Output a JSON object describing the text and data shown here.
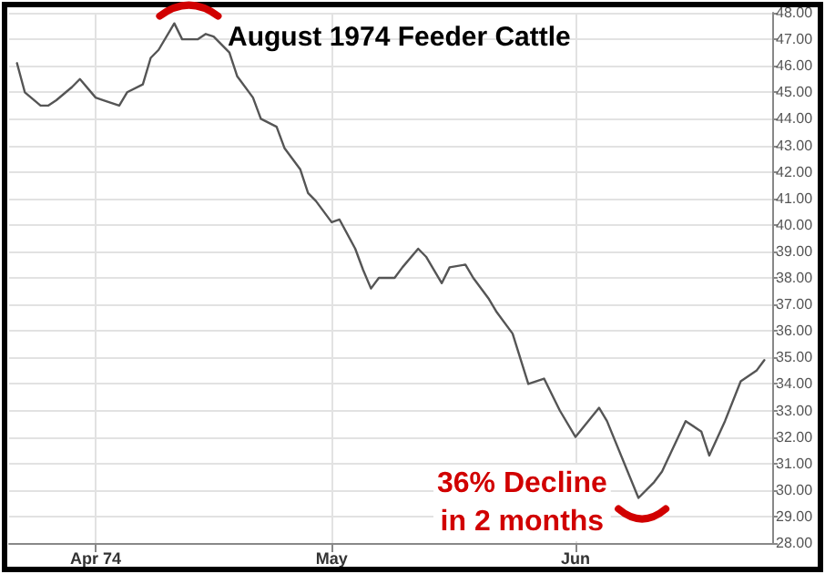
{
  "chart_data": {
    "type": "line",
    "title": "August 1974 Feeder Cattle",
    "annotations": [
      "36% Decline\nin 2 months"
    ],
    "x": [
      "1974-03-22",
      "1974-03-23",
      "1974-03-25",
      "1974-03-26",
      "1974-03-27",
      "1974-03-29",
      "1974-03-30",
      "1974-04-01",
      "1974-04-02",
      "1974-04-04",
      "1974-04-05",
      "1974-04-07",
      "1974-04-08",
      "1974-04-09",
      "1974-04-11",
      "1974-04-12",
      "1974-04-14",
      "1974-04-15",
      "1974-04-16",
      "1974-04-18",
      "1974-04-19",
      "1974-04-21",
      "1974-04-22",
      "1974-04-24",
      "1974-04-25",
      "1974-04-27",
      "1974-04-28",
      "1974-04-29",
      "1974-05-01",
      "1974-05-02",
      "1974-05-04",
      "1974-05-05",
      "1974-05-06",
      "1974-05-07",
      "1974-05-09",
      "1974-05-10",
      "1974-05-12",
      "1974-05-13",
      "1974-05-15",
      "1974-05-16",
      "1974-05-18",
      "1974-05-19",
      "1974-05-21",
      "1974-05-22",
      "1974-05-24",
      "1974-05-26",
      "1974-05-28",
      "1974-05-30",
      "1974-06-01",
      "1974-06-04",
      "1974-06-05",
      "1974-06-09",
      "1974-06-11",
      "1974-06-12",
      "1974-06-15",
      "1974-06-17",
      "1974-06-18",
      "1974-06-20",
      "1974-06-22",
      "1974-06-24",
      "1974-06-25"
    ],
    "series": [
      {
        "color": "#555555",
        "values": [
          46.1,
          45.0,
          44.5,
          44.5,
          44.7,
          45.2,
          45.5,
          44.8,
          44.7,
          44.5,
          45.0,
          45.3,
          46.3,
          46.6,
          47.6,
          47.0,
          47.0,
          47.2,
          47.1,
          46.5,
          45.6,
          44.8,
          44.0,
          43.7,
          42.9,
          42.1,
          41.2,
          40.9,
          40.1,
          40.2,
          39.1,
          38.3,
          37.6,
          38.0,
          38.0,
          38.4,
          39.1,
          38.8,
          37.8,
          38.4,
          38.5,
          38.0,
          37.2,
          36.7,
          35.9,
          34.0,
          34.2,
          33.0,
          32.0,
          33.1,
          32.6,
          29.7,
          30.3,
          30.7,
          32.6,
          32.2,
          31.3,
          32.6,
          34.1,
          34.5,
          34.9
        ]
      }
    ],
    "xlim": [
      "1974-03-21",
      "1974-06-26"
    ],
    "xticks": [
      {
        "value": "1974-04-01",
        "label": "Apr 74"
      },
      {
        "value": "1974-05-01",
        "label": "May"
      },
      {
        "value": "1974-06-01",
        "label": "Jun"
      }
    ],
    "ylim": [
      28,
      48
    ],
    "yticks": [
      {
        "value": 28,
        "label": "28.00"
      },
      {
        "value": 29,
        "label": "29.00"
      },
      {
        "value": 30,
        "label": "30.00"
      },
      {
        "value": 31,
        "label": "31.00"
      },
      {
        "value": 32,
        "label": "32.00"
      },
      {
        "value": 33,
        "label": "33.00"
      },
      {
        "value": 34,
        "label": "34.00"
      },
      {
        "value": 35,
        "label": "35.00"
      },
      {
        "value": 36,
        "label": "36.00"
      },
      {
        "value": 37,
        "label": "37.00"
      },
      {
        "value": 38,
        "label": "38.00"
      },
      {
        "value": 39,
        "label": "39.00"
      },
      {
        "value": 40,
        "label": "40.00"
      },
      {
        "value": 41,
        "label": "41.00"
      },
      {
        "value": 42,
        "label": "42.00"
      },
      {
        "value": 43,
        "label": "43.00"
      },
      {
        "value": 44,
        "label": "44.00"
      },
      {
        "value": 45,
        "label": "45.00"
      },
      {
        "value": 46,
        "label": "46.00"
      },
      {
        "value": 47,
        "label": "47.00"
      },
      {
        "value": 48,
        "label": "48.00"
      }
    ],
    "grid": true,
    "marker": "none",
    "line_style": "solid"
  }
}
